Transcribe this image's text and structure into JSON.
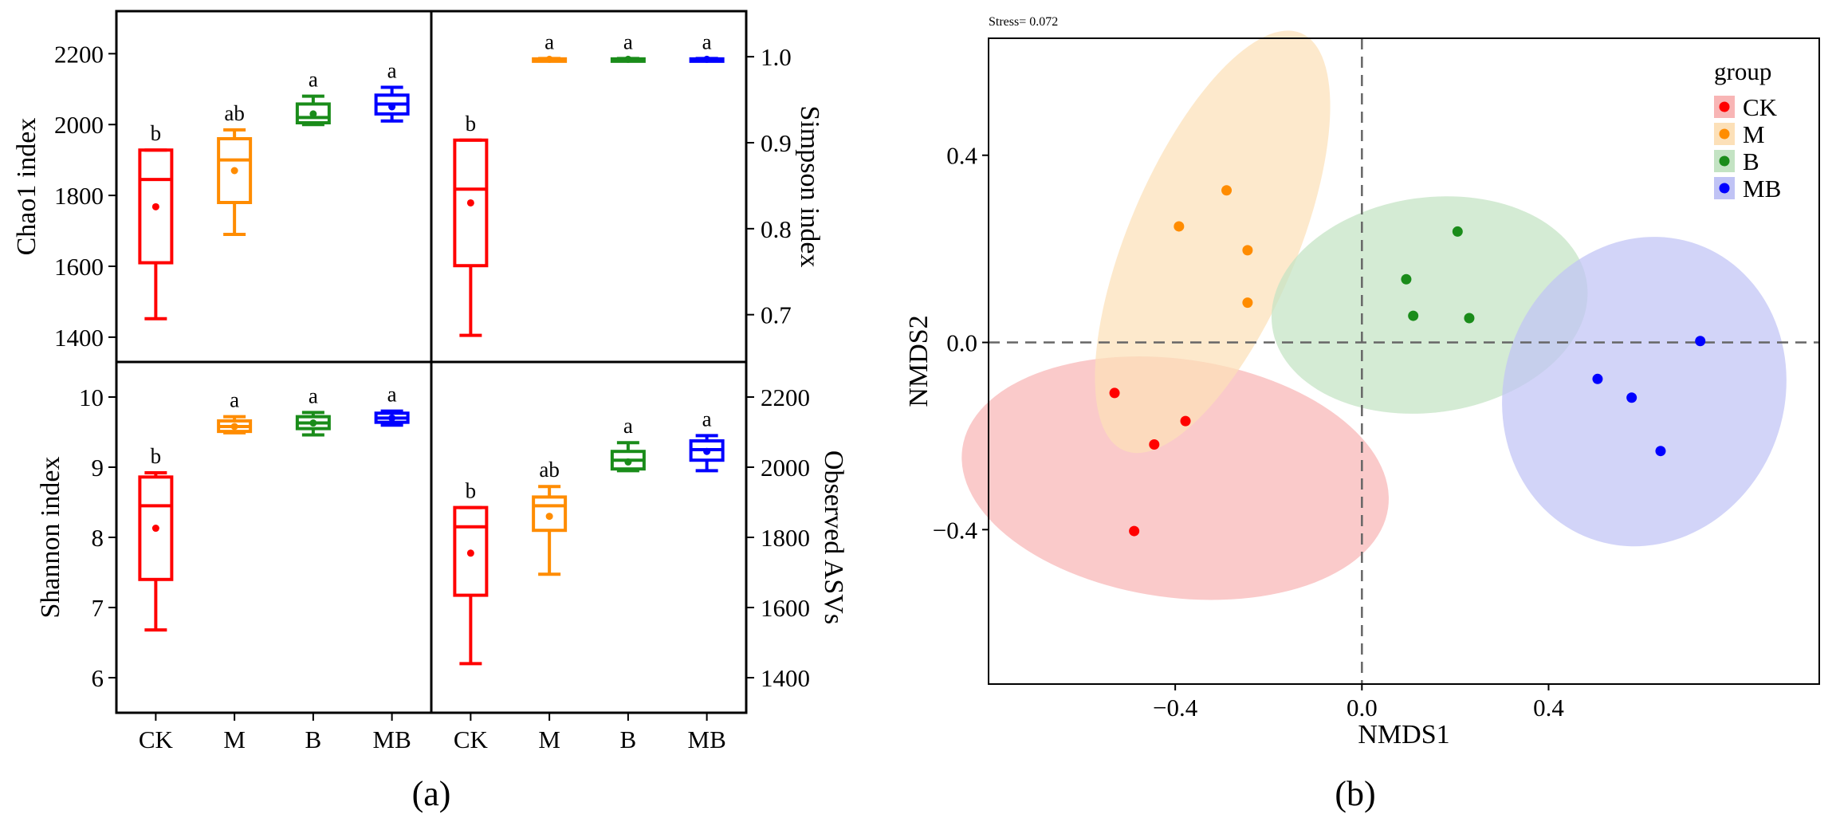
{
  "panel_a": {
    "caption": "(a)",
    "groups": [
      "CK",
      "M",
      "B",
      "MB"
    ],
    "colors": {
      "CK": "#ff0000",
      "M": "#ff8c00",
      "B": "#1a8c1a",
      "MB": "#0000ff"
    }
  },
  "panel_b": {
    "caption": "(b)",
    "stress_label": "Stress= 0.072"
  },
  "chart_data": [
    {
      "type": "box",
      "ylabel": "Chao1 index",
      "ylim": [
        1330,
        2320
      ],
      "yticks": [
        1400,
        1600,
        1800,
        2000,
        2200
      ],
      "categories": [
        "CK",
        "M",
        "B",
        "MB"
      ],
      "boxes": [
        {
          "group": "CK",
          "min": 1452,
          "q1": 1610,
          "median": 1845,
          "q3": 1928,
          "max": 1928,
          "mean": 1768,
          "letter": "b"
        },
        {
          "group": "M",
          "min": 1690,
          "q1": 1780,
          "median": 1900,
          "q3": 1960,
          "max": 1985,
          "mean": 1870,
          "letter": "ab"
        },
        {
          "group": "B",
          "min": 2000,
          "q1": 2005,
          "median": 2020,
          "q3": 2058,
          "max": 2080,
          "mean": 2030,
          "letter": "a"
        },
        {
          "group": "MB",
          "min": 2010,
          "q1": 2030,
          "median": 2058,
          "q3": 2083,
          "max": 2105,
          "mean": 2050,
          "letter": "a"
        }
      ]
    },
    {
      "type": "box",
      "ylabel": "Simpson index",
      "ylim": [
        0.645,
        1.053
      ],
      "yticks": [
        0.7,
        0.8,
        0.9,
        1.0
      ],
      "categories": [
        "CK",
        "M",
        "B",
        "MB"
      ],
      "boxes": [
        {
          "group": "CK",
          "min": 0.676,
          "q1": 0.757,
          "median": 0.846,
          "q3": 0.903,
          "max": 0.903,
          "mean": 0.83,
          "letter": "b"
        },
        {
          "group": "M",
          "min": 0.996,
          "q1": 0.9965,
          "median": 0.997,
          "q3": 0.9975,
          "max": 0.998,
          "mean": 0.997,
          "letter": "a"
        },
        {
          "group": "B",
          "min": 0.996,
          "q1": 0.9965,
          "median": 0.997,
          "q3": 0.9975,
          "max": 0.998,
          "mean": 0.997,
          "letter": "a"
        },
        {
          "group": "MB",
          "min": 0.996,
          "q1": 0.9965,
          "median": 0.997,
          "q3": 0.9975,
          "max": 0.998,
          "mean": 0.997,
          "letter": "a"
        }
      ]
    },
    {
      "type": "box",
      "ylabel": "Shannon index",
      "ylim": [
        5.5,
        10.5
      ],
      "yticks": [
        6,
        7,
        8,
        9,
        10
      ],
      "categories": [
        "CK",
        "M",
        "B",
        "MB"
      ],
      "boxes": [
        {
          "group": "CK",
          "min": 6.68,
          "q1": 7.4,
          "median": 8.45,
          "q3": 8.86,
          "max": 8.92,
          "mean": 8.13,
          "letter": "b"
        },
        {
          "group": "M",
          "min": 9.49,
          "q1": 9.51,
          "median": 9.58,
          "q3": 9.66,
          "max": 9.72,
          "mean": 9.58,
          "letter": "a"
        },
        {
          "group": "B",
          "min": 9.46,
          "q1": 9.55,
          "median": 9.63,
          "q3": 9.72,
          "max": 9.78,
          "mean": 9.63,
          "letter": "a"
        },
        {
          "group": "MB",
          "min": 9.6,
          "q1": 9.64,
          "median": 9.7,
          "q3": 9.77,
          "max": 9.8,
          "mean": 9.7,
          "letter": "a"
        }
      ]
    },
    {
      "type": "box",
      "ylabel": "Observed ASVs",
      "ylim": [
        1300,
        2300
      ],
      "yticks": [
        1400,
        1600,
        1800,
        2000,
        2200
      ],
      "categories": [
        "CK",
        "M",
        "B",
        "MB"
      ],
      "boxes": [
        {
          "group": "CK",
          "min": 1440,
          "q1": 1635,
          "median": 1830,
          "q3": 1885,
          "max": 1885,
          "mean": 1755,
          "letter": "b"
        },
        {
          "group": "M",
          "min": 1695,
          "q1": 1820,
          "median": 1890,
          "q3": 1915,
          "max": 1945,
          "mean": 1860,
          "letter": "ab"
        },
        {
          "group": "B",
          "min": 1990,
          "q1": 1995,
          "median": 2020,
          "q3": 2045,
          "max": 2070,
          "mean": 2015,
          "letter": "a"
        },
        {
          "group": "MB",
          "min": 1990,
          "q1": 2020,
          "median": 2050,
          "q3": 2075,
          "max": 2090,
          "mean": 2045,
          "letter": "a"
        }
      ]
    },
    {
      "type": "scatter",
      "xlabel": "NMDS1",
      "ylabel": "NMDS2",
      "xlim": [
        -0.8,
        0.98
      ],
      "ylim": [
        -0.73,
        0.65
      ],
      "xticks": [
        -0.4,
        0.0,
        0.4
      ],
      "yticks": [
        -0.4,
        0.0,
        0.4
      ],
      "legend_title": "group",
      "legend_position": "top-right",
      "reference_lines": {
        "x": 0,
        "y": 0
      },
      "series": [
        {
          "name": "CK",
          "color": "#ff0000",
          "points": [
            [
              -0.53,
              -0.108
            ],
            [
              -0.445,
              -0.218
            ],
            [
              -0.378,
              -0.168
            ],
            [
              -0.488,
              -0.403
            ]
          ],
          "ellipse": {
            "cx": -0.4,
            "cy": -0.29,
            "rx": 0.255,
            "ry": 0.46,
            "angle": 82,
            "fill": "#f8b5b5"
          }
        },
        {
          "name": "M",
          "color": "#ff8c00",
          "points": [
            [
              -0.392,
              0.248
            ],
            [
              -0.29,
              0.325
            ],
            [
              -0.245,
              0.197
            ],
            [
              -0.245,
              0.085
            ]
          ],
          "ellipse": {
            "cx": -0.32,
            "cy": 0.215,
            "rx": 0.485,
            "ry": 0.18,
            "angle": 67,
            "fill": "#fce0b8"
          }
        },
        {
          "name": "B",
          "color": "#1a8c1a",
          "points": [
            [
              0.095,
              0.135
            ],
            [
              0.205,
              0.237
            ],
            [
              0.11,
              0.057
            ],
            [
              0.23,
              0.052
            ]
          ],
          "ellipse": {
            "cx": 0.145,
            "cy": 0.08,
            "rx": 0.23,
            "ry": 0.34,
            "angle": -82,
            "fill": "#c3e3c3"
          }
        },
        {
          "name": "MB",
          "color": "#0000ff",
          "points": [
            [
              0.505,
              -0.078
            ],
            [
              0.578,
              -0.118
            ],
            [
              0.64,
              -0.232
            ],
            [
              0.725,
              0.003
            ]
          ],
          "ellipse": {
            "cx": 0.605,
            "cy": -0.105,
            "rx": 0.3,
            "ry": 0.335,
            "angle": -20,
            "fill": "#c0c3f5"
          }
        }
      ]
    }
  ]
}
